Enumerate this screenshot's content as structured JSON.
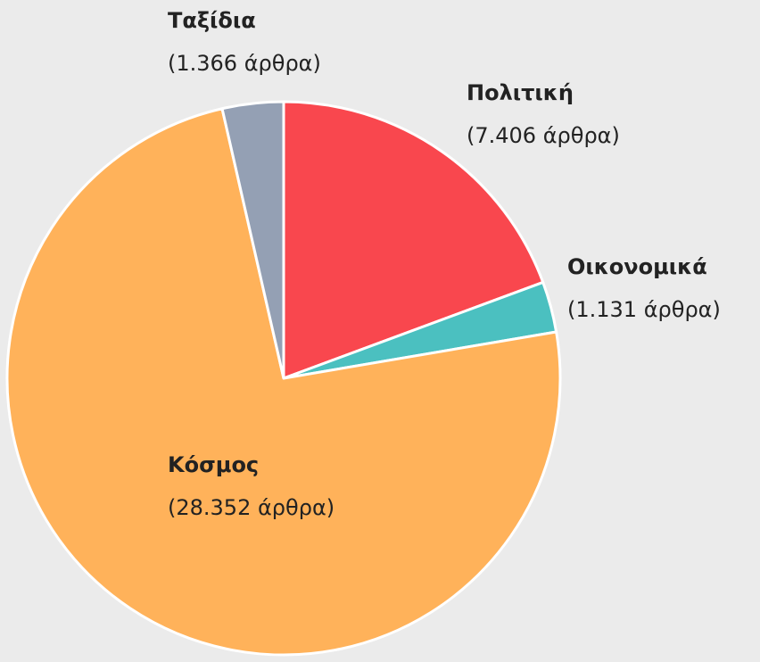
{
  "chart_data": {
    "type": "pie",
    "categories": [
      "Πολιτική",
      "Οικονομικά",
      "Κόσμος",
      "Ταξίδια"
    ],
    "values": [
      7406,
      1131,
      28352,
      1366
    ],
    "value_labels": [
      "(7.406 άρθρα)",
      "(1.131 άρθρα)",
      "(28.352 άρθρα)",
      "(1.366 άρθρα)"
    ],
    "colors": [
      "#f9474e",
      "#4bc0c0",
      "#ffb25a",
      "#94a0b4"
    ]
  }
}
